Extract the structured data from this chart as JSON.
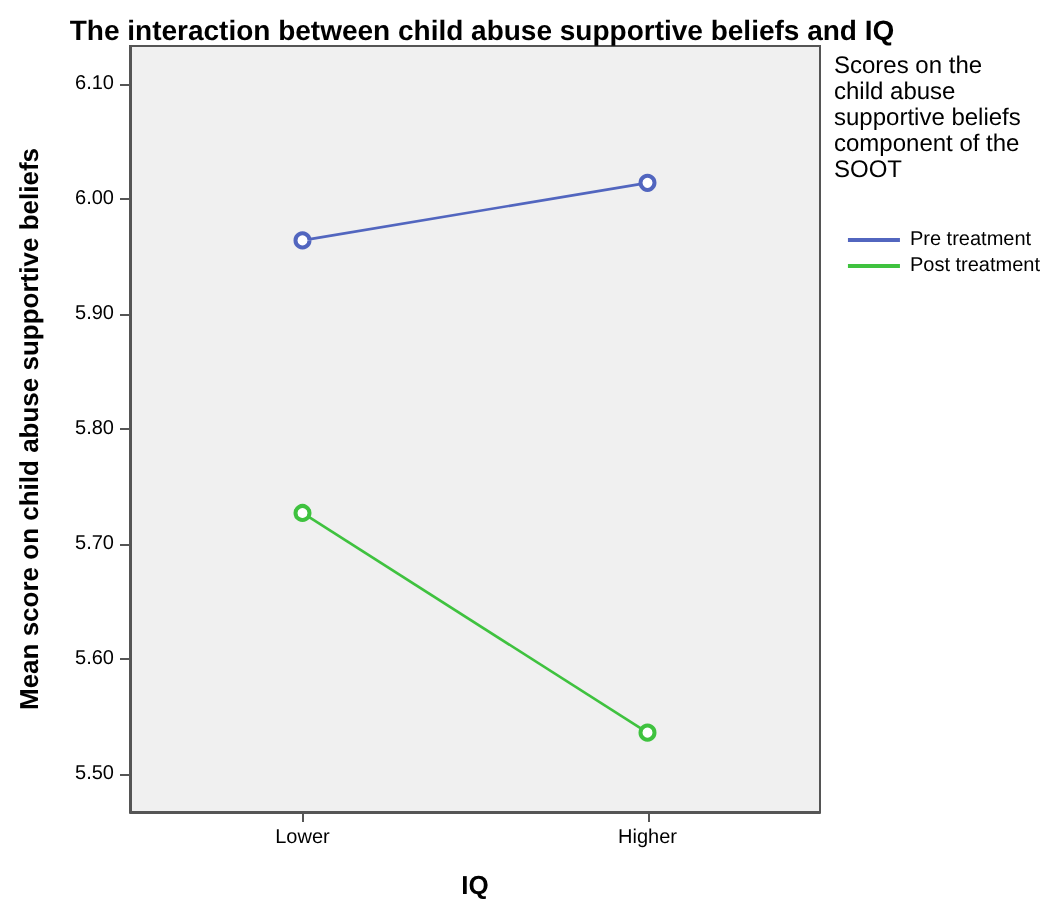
{
  "chart_data": {
    "type": "line",
    "title": "The interaction between child abuse supportive beliefs and IQ",
    "xlabel": "IQ",
    "ylabel": "Mean score on child abuse supportive beliefs",
    "legend_title": "Scores on the child abuse supportive beliefs component of the SOOT",
    "categories": [
      "Lower",
      "Higher"
    ],
    "series": [
      {
        "name": "Pre treatment",
        "color": "#5266bf",
        "values": [
          5.964,
          6.014
        ]
      },
      {
        "name": "Post treatment",
        "color": "#3fc23f",
        "values": [
          5.727,
          5.536
        ]
      }
    ],
    "ylim": [
      5.467,
      6.133
    ],
    "yticks": [
      {
        "value": 5.5,
        "label": "5.50"
      },
      {
        "value": 5.6,
        "label": "5.60"
      },
      {
        "value": 5.7,
        "label": "5.70"
      },
      {
        "value": 5.8,
        "label": "5.80"
      },
      {
        "value": 5.9,
        "label": "5.90"
      },
      {
        "value": 6.0,
        "label": "6.00"
      },
      {
        "value": 6.1,
        "label": "6.10"
      }
    ],
    "grid": false,
    "legend": "right",
    "marker": "circle",
    "line_style": "solid"
  }
}
